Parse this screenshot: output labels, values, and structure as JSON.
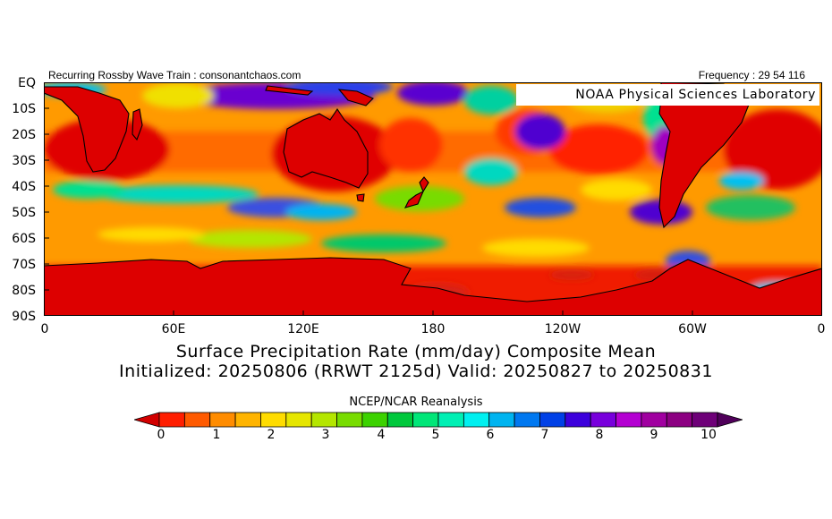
{
  "header": {
    "left": "Recurring Rossby Wave Train : consonantchaos.com",
    "right": "Frequency : 29 54 116"
  },
  "credit": "NOAA Physical Sciences Laboratory",
  "map": {
    "projection": "equirectangular",
    "lon_range": [
      0,
      360
    ],
    "lat_range": [
      -90,
      0
    ],
    "lat_labels": [
      "EQ",
      "10S",
      "20S",
      "30S",
      "40S",
      "50S",
      "60S",
      "70S",
      "80S",
      "90S"
    ],
    "lon_labels": [
      "0",
      "60E",
      "120E",
      "180",
      "120W",
      "60W",
      "0"
    ]
  },
  "title_line1": "Surface Precipitation Rate (mm/day) Composite Mean",
  "title_line2": "Initialized: 20250806 (RRWT 2125d) Valid: 20250827 to 20250831",
  "source": "NCEP/NCAR Reanalysis",
  "colorbar": {
    "colors": [
      "#d20000",
      "#ff1e00",
      "#ff5a00",
      "#ff8c00",
      "#ffb400",
      "#ffdc00",
      "#e6e600",
      "#b4e600",
      "#78dc00",
      "#3cd200",
      "#00c83c",
      "#00e678",
      "#00f0b4",
      "#00f0f0",
      "#00b4f0",
      "#0078f0",
      "#0040e6",
      "#3c00dc",
      "#7800dc",
      "#b400d2",
      "#a000a0",
      "#8c0082",
      "#6e0078",
      "#50005a"
    ],
    "labels": [
      "0",
      "1",
      "2",
      "3",
      "4",
      "5",
      "6",
      "7",
      "8",
      "9",
      "10"
    ]
  }
}
